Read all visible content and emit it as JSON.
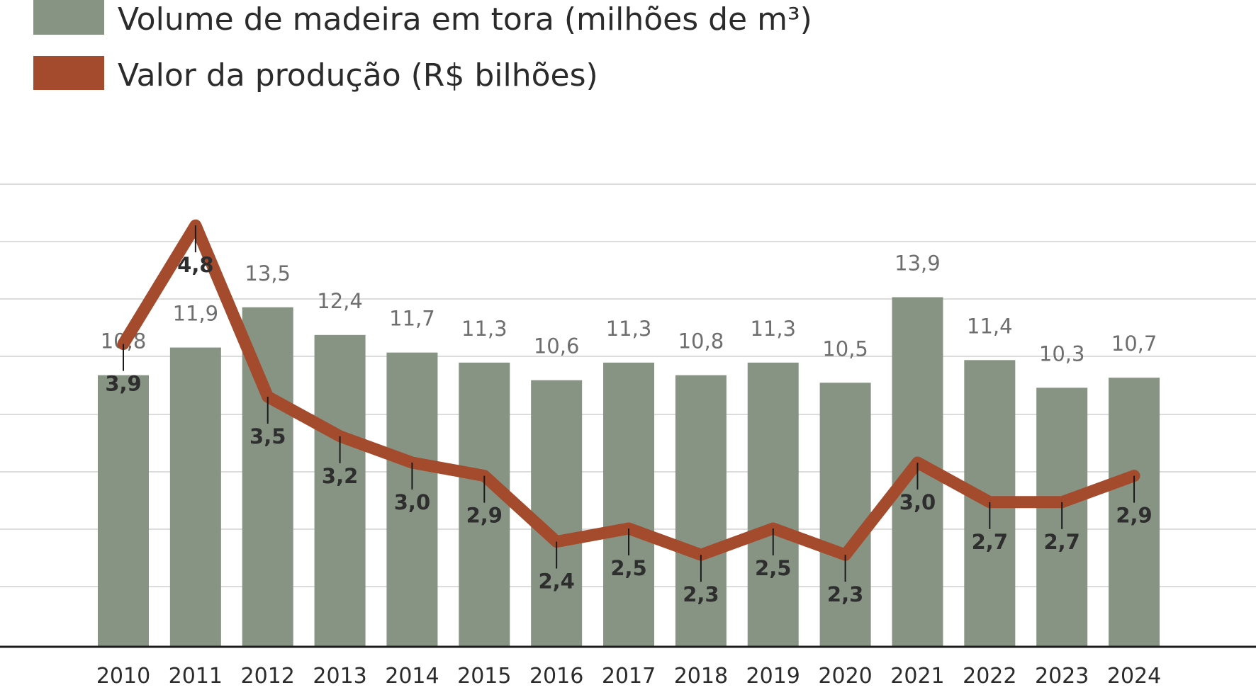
{
  "chart_data": {
    "type": "bar",
    "categories": [
      "2010",
      "2011",
      "2012",
      "2013",
      "2014",
      "2015",
      "2016",
      "2017",
      "2018",
      "2019",
      "2020",
      "2021",
      "2022",
      "2023",
      "2024"
    ],
    "series": [
      {
        "name": "Volume de madeira em tora (milhões de m³)",
        "type": "bar",
        "values": [
          10.8,
          11.9,
          13.5,
          12.4,
          11.7,
          11.3,
          10.6,
          11.3,
          10.8,
          11.3,
          10.5,
          13.9,
          11.4,
          10.3,
          10.7
        ],
        "labels": [
          "10,8",
          "11,9",
          "13,5",
          "12,4",
          "11,7",
          "11,3",
          "10,6",
          "11,3",
          "10,8",
          "11,3",
          "10,5",
          "13,9",
          "11,4",
          "10,3",
          "10,7"
        ]
      },
      {
        "name": "Valor da produção (R$ bilhões)",
        "type": "line",
        "values": [
          3.9,
          4.8,
          3.5,
          3.2,
          3.0,
          2.9,
          2.4,
          2.5,
          2.3,
          2.5,
          2.3,
          3.0,
          2.7,
          2.7,
          2.9
        ],
        "labels": [
          "3,9",
          "4,8",
          "3,5",
          "3,2",
          "3,0",
          "2,9",
          "2,4",
          "2,5",
          "2,3",
          "2,5",
          "2,3",
          "3,0",
          "2,7",
          "2,7",
          "2,9"
        ]
      }
    ],
    "legend_position": "top-left",
    "grid": true,
    "colors": {
      "bar": "#879484",
      "line": "#a44b2d",
      "grid": "#dcdcdc",
      "axis": "#1a1a1a"
    }
  }
}
